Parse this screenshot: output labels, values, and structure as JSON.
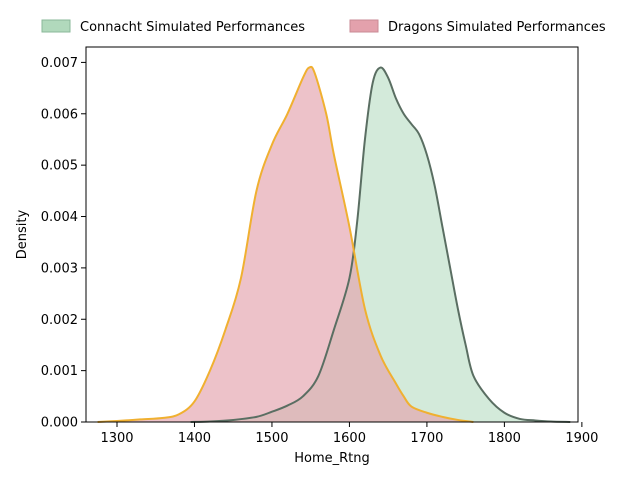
{
  "chart_data": {
    "type": "area",
    "xlabel": "Home_Rtng",
    "ylabel": "Density",
    "xlim": [
      1260,
      1895
    ],
    "ylim": [
      0,
      0.0073
    ],
    "x_ticks": [
      1300,
      1400,
      1500,
      1600,
      1700,
      1800,
      1900
    ],
    "y_ticks": [
      0.0,
      0.001,
      0.002,
      0.003,
      0.004,
      0.005,
      0.006,
      0.007
    ],
    "x_tick_labels": [
      "1300",
      "1400",
      "1500",
      "1600",
      "1700",
      "1800",
      "1900"
    ],
    "y_tick_labels": [
      "0.000",
      "0.001",
      "0.002",
      "0.003",
      "0.004",
      "0.005",
      "0.006",
      "0.007"
    ],
    "grid": false,
    "legend_position": "top",
    "series": [
      {
        "name": "Connacht Simulated Performances",
        "fill_color": "#a8d5b5",
        "line_color": "#5a6e62",
        "points": [
          [
            1395,
            0.0
          ],
          [
            1420,
            1e-05
          ],
          [
            1450,
            4e-05
          ],
          [
            1480,
            0.0001
          ],
          [
            1500,
            0.0002
          ],
          [
            1520,
            0.00032
          ],
          [
            1540,
            0.0005
          ],
          [
            1560,
            0.0009
          ],
          [
            1580,
            0.0018
          ],
          [
            1600,
            0.0028
          ],
          [
            1610,
            0.0039
          ],
          [
            1620,
            0.0055
          ],
          [
            1630,
            0.0066
          ],
          [
            1640,
            0.0069
          ],
          [
            1650,
            0.0067
          ],
          [
            1660,
            0.0063
          ],
          [
            1670,
            0.006
          ],
          [
            1680,
            0.0058
          ],
          [
            1690,
            0.0056
          ],
          [
            1700,
            0.0052
          ],
          [
            1710,
            0.0046
          ],
          [
            1720,
            0.0038
          ],
          [
            1730,
            0.003
          ],
          [
            1740,
            0.0022
          ],
          [
            1750,
            0.0015
          ],
          [
            1760,
            0.0009
          ],
          [
            1780,
            0.00045
          ],
          [
            1800,
            0.00018
          ],
          [
            1820,
            6e-05
          ],
          [
            1840,
            3e-05
          ],
          [
            1860,
            1e-05
          ],
          [
            1885,
            0.0
          ]
        ]
      },
      {
        "name": "Dragons Simulated Performances",
        "fill_color": "#e3a1ac",
        "line_color": "#f0b030",
        "points": [
          [
            1275,
            0.0
          ],
          [
            1300,
            2e-05
          ],
          [
            1330,
            5e-05
          ],
          [
            1360,
            8e-05
          ],
          [
            1380,
            0.00015
          ],
          [
            1400,
            0.0004
          ],
          [
            1420,
            0.001
          ],
          [
            1440,
            0.0018
          ],
          [
            1460,
            0.0028
          ],
          [
            1480,
            0.0045
          ],
          [
            1500,
            0.0054
          ],
          [
            1520,
            0.006
          ],
          [
            1540,
            0.0067
          ],
          [
            1548,
            0.0069
          ],
          [
            1555,
            0.0068
          ],
          [
            1570,
            0.006
          ],
          [
            1580,
            0.0052
          ],
          [
            1600,
            0.0038
          ],
          [
            1620,
            0.0022
          ],
          [
            1640,
            0.0013
          ],
          [
            1660,
            0.00075
          ],
          [
            1670,
            0.0005
          ],
          [
            1680,
            0.0003
          ],
          [
            1700,
            0.00018
          ],
          [
            1720,
            0.0001
          ],
          [
            1740,
            4e-05
          ],
          [
            1760,
            0.0
          ]
        ]
      }
    ]
  }
}
